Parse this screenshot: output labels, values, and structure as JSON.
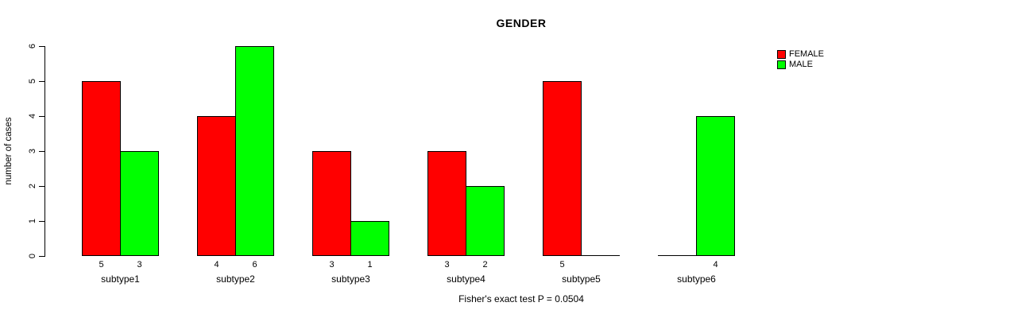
{
  "caption": "Fisher's exact test P = 0.0504",
  "chart_data": {
    "type": "bar",
    "grouped": true,
    "title": "GENDER",
    "xlabel": "",
    "ylabel": "number of cases",
    "categories": [
      "subtype1",
      "subtype2",
      "subtype3",
      "subtype4",
      "subtype5",
      "subtype6"
    ],
    "series": [
      {
        "name": "FEMALE",
        "color": "#FF0000",
        "values": [
          5,
          4,
          3,
          3,
          5,
          0
        ]
      },
      {
        "name": "MALE",
        "color": "#00FF00",
        "values": [
          3,
          6,
          1,
          2,
          0,
          4
        ]
      }
    ],
    "bar_value_labels": {
      "FEMALE": [
        "5",
        "4",
        "3",
        "3",
        "5",
        ""
      ],
      "MALE": [
        "3",
        "6",
        "1",
        "2",
        "",
        "4"
      ]
    },
    "yticks": [
      0,
      1,
      2,
      3,
      4,
      5,
      6
    ],
    "ylim": [
      0,
      6
    ],
    "grid": false,
    "legend_position": "top-right",
    "annotation": "Fisher's exact test P = 0.0504",
    "colors": {
      "female": "#FF0000",
      "male": "#00FF00",
      "axis": "#000000",
      "background": "#FFFFFF"
    }
  }
}
